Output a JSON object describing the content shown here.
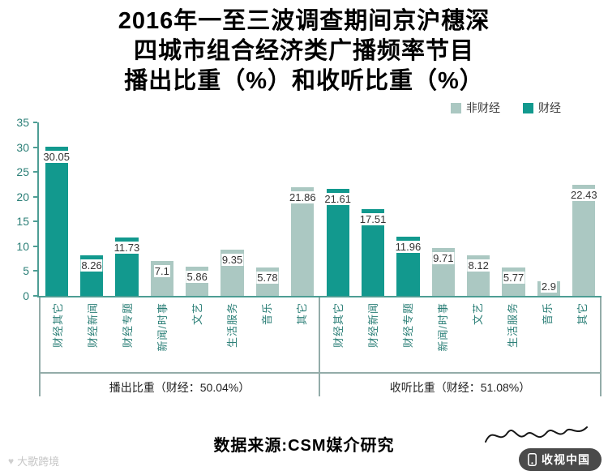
{
  "title": {
    "line1": "2016年一至三波调查期间京沪穗深",
    "line2": "四城市组合经济类广播频率节目",
    "line3": "播出比重（%）和收听比重（%）"
  },
  "legend": {
    "items": [
      {
        "label": "非财经",
        "color": "#abc8c2"
      },
      {
        "label": "财经",
        "color": "#12998e"
      }
    ]
  },
  "chart_data": {
    "type": "bar",
    "title": "2016年一至三波调查期间京沪穗深四城市组合经济类广播频率节目播出比重（%）和收听比重（%）",
    "ylim": [
      0,
      35
    ],
    "yticks": [
      0,
      5,
      10,
      15,
      20,
      25,
      30,
      35
    ],
    "grid": false,
    "legend_position": "top-right",
    "series_colors": {
      "财经": "#12998e",
      "非财经": "#abc8c2"
    },
    "groups": [
      {
        "label": "播出比重（财经：50.04%）",
        "categories": [
          "财经其它",
          "财经新闻",
          "财经专题",
          "新闻/时事",
          "文艺",
          "生活服务",
          "音乐",
          "其它"
        ],
        "values": [
          30.05,
          8.26,
          11.73,
          7.1,
          5.86,
          9.35,
          5.78,
          21.86
        ],
        "series": [
          "财经",
          "财经",
          "财经",
          "非财经",
          "非财经",
          "非财经",
          "非财经",
          "非财经"
        ]
      },
      {
        "label": "收听比重（财经：51.08%）",
        "categories": [
          "财经其它",
          "财经新闻",
          "财经专题",
          "新闻/时事",
          "文艺",
          "生活服务",
          "音乐",
          "其它"
        ],
        "values": [
          21.61,
          17.51,
          11.96,
          9.71,
          8.12,
          5.77,
          2.9,
          22.43
        ],
        "series": [
          "财经",
          "财经",
          "财经",
          "非财经",
          "非财经",
          "非财经",
          "非财经",
          "非财经"
        ]
      }
    ]
  },
  "footer": {
    "source_text": "数据来源:CSM媒介研究"
  },
  "watermark": {
    "text": "大歌跨境",
    "icon": "heart-icon"
  },
  "publisher_badge": {
    "text": "收视中国",
    "icon": "phone-icon"
  }
}
